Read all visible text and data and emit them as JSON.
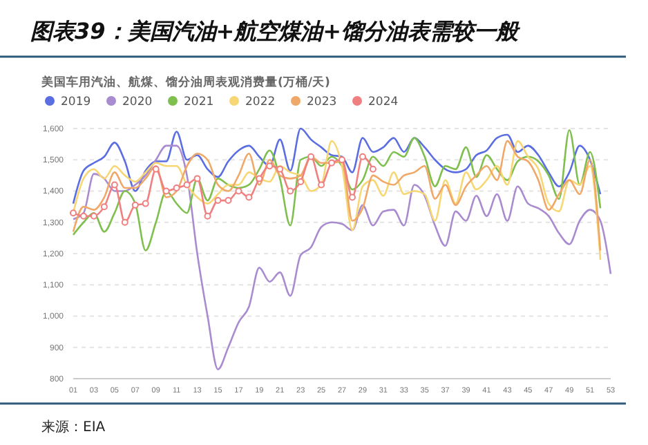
{
  "chart_data": {
    "type": "line",
    "title": "图表39：美国汽油+航空煤油+馏分油表需较一般",
    "subtitle": "美国车用汽油、航煤、馏分油周表观消费量(万桶/天)",
    "annotations": [
      "来源：EIA"
    ],
    "categories": [
      "01",
      null,
      "03",
      null,
      "05",
      null,
      "07",
      null,
      "09",
      null,
      "11",
      null,
      "13",
      null,
      "15",
      null,
      "17",
      null,
      "19",
      null,
      "21",
      null,
      "23",
      null,
      "25",
      null,
      "27",
      null,
      "29",
      null,
      "31",
      null,
      "33",
      null,
      "35",
      null,
      "37",
      null,
      "39",
      null,
      "41",
      null,
      "43",
      null,
      "45",
      null,
      "47",
      null,
      "49",
      null,
      "51",
      null,
      "53"
    ],
    "ylim": [
      800,
      1600
    ],
    "yticks": [
      800,
      900,
      {
        "value": 1000,
        "label": "1,000"
      },
      {
        "value": 1100,
        "label": "1,100"
      },
      {
        "value": 1200,
        "label": "1,200"
      },
      {
        "value": 1300,
        "label": "1,300"
      },
      {
        "value": 1400,
        "label": "1,400"
      },
      {
        "value": 1500,
        "label": "1,500"
      },
      {
        "value": 1600,
        "label": "1,600"
      }
    ],
    "grid": "y",
    "legend": "top left",
    "marker": "none",
    "series": [
      {
        "name": "2019",
        "color": "#5b6ee1",
        "values": [
          1360,
          1465,
          1490,
          1510,
          1555,
          1495,
          1400,
          1465,
          1495,
          1495,
          1590,
          1500,
          1515,
          1470,
          1445,
          1495,
          1530,
          1545,
          1510,
          1480,
          1565,
          1465,
          1600,
          1565,
          1540,
          1515,
          1510,
          1460,
          1570,
          1525,
          1540,
          1570,
          1525,
          1570,
          1540,
          1500,
          1470,
          1460,
          1470,
          1515,
          1530,
          1570,
          1580,
          1525,
          1545,
          1515,
          1460,
          1415,
          1460,
          1545,
          1500,
          1390,
          null
        ]
      },
      {
        "name": "2020",
        "color": "#a98bd0",
        "values": [
          1310,
          1330,
          1455,
          1440,
          1400,
          1400,
          1420,
          1450,
          1500,
          1545,
          1545,
          1450,
          1200,
          1000,
          830,
          900,
          980,
          1030,
          1155,
          1110,
          1140,
          1065,
          1195,
          1220,
          1285,
          1300,
          1295,
          1275,
          1355,
          1290,
          1335,
          1340,
          1290,
          1420,
          1385,
          1290,
          1225,
          1335,
          1305,
          1385,
          1320,
          1390,
          1305,
          1415,
          1360,
          1345,
          1320,
          1265,
          1230,
          1305,
          1340,
          1305,
          1135
        ]
      },
      {
        "name": "2021",
        "color": "#7fbf4d",
        "values": [
          1260,
          1300,
          1330,
          1270,
          1330,
          1400,
          1360,
          1210,
          1300,
          1400,
          1360,
          1330,
          1440,
          1370,
          1440,
          1420,
          1410,
          1420,
          1470,
          1530,
          1440,
          1290,
          1500,
          1510,
          1480,
          1510,
          1480,
          1405,
          1435,
          1510,
          1480,
          1525,
          1510,
          1570,
          1510,
          1415,
          1480,
          1470,
          1540,
          1445,
          1515,
          1470,
          1435,
          1495,
          1510,
          1495,
          1450,
          1375,
          1595,
          1420,
          1525,
          1345,
          null
        ]
      },
      {
        "name": "2022",
        "color": "#f7d774",
        "values": [
          1330,
          1440,
          1470,
          1440,
          1480,
          1450,
          1430,
          1460,
          1490,
          1480,
          1480,
          1420,
          1380,
          1360,
          1390,
          1420,
          1420,
          1460,
          1440,
          1430,
          1480,
          1460,
          1450,
          1400,
          1420,
          1560,
          1480,
          1275,
          1415,
          1435,
          1385,
          1460,
          1390,
          1400,
          1390,
          1305,
          1435,
          1360,
          1460,
          1405,
          1435,
          1480,
          1420,
          1560,
          1510,
          1470,
          1360,
          1335,
          1435,
          1420,
          1480,
          1180,
          null
        ]
      },
      {
        "name": "2023",
        "color": "#f0a868",
        "values": [
          1270,
          1350,
          1340,
          1380,
          1460,
          1410,
          1410,
          1440,
          1480,
          1380,
          1400,
          1480,
          1520,
          1500,
          1420,
          1400,
          1450,
          1520,
          1420,
          1500,
          1450,
          1440,
          1450,
          1510,
          1490,
          1490,
          1495,
          1305,
          1345,
          1450,
          1430,
          1420,
          1450,
          1460,
          1480,
          1375,
          1420,
          1355,
          1415,
          1450,
          1480,
          1435,
          1560,
          1510,
          1495,
          1435,
          1340,
          1390,
          1435,
          1390,
          1500,
          1210,
          null
        ]
      },
      {
        "name": "2024",
        "color": "#f08080",
        "marker": "circle",
        "values": [
          1330,
          1320,
          1320,
          1350,
          1420,
          1300,
          1355,
          1360,
          1470,
          1400,
          1410,
          1420,
          1440,
          1320,
          1370,
          1370,
          1400,
          1380,
          1440,
          1480,
          1470,
          1400,
          1430,
          1510,
          1420,
          1490,
          1500,
          1380,
          1510,
          1470,
          null,
          null,
          null,
          null,
          null,
          null,
          null,
          null,
          null,
          null,
          null,
          null,
          null,
          null,
          null,
          null,
          null,
          null,
          null,
          null,
          null,
          null,
          null
        ]
      }
    ]
  }
}
